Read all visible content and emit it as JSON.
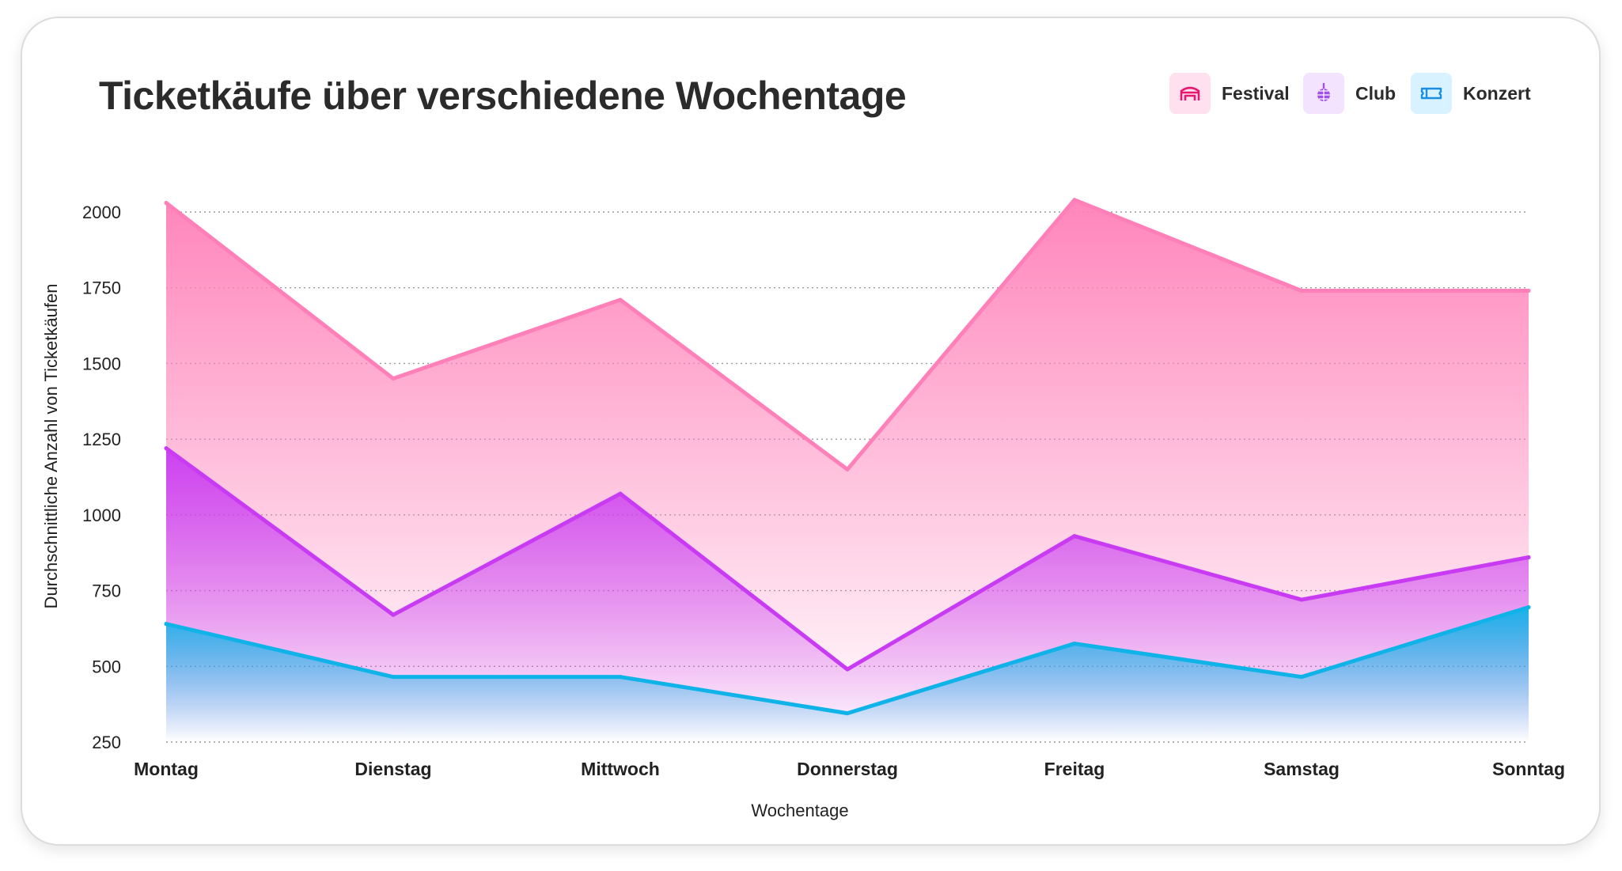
{
  "chart_data": {
    "type": "area",
    "title": "Ticketkäufe über verschiedene Wochentage",
    "xlabel": "Wochentage",
    "ylabel": "Durchschnittliche Anzahl von Ticketkäufen",
    "categories": [
      "Montag",
      "Dienstag",
      "Mittwoch",
      "Donnerstag",
      "Freitag",
      "Samstag",
      "Sonntag"
    ],
    "ylim": [
      250,
      2050
    ],
    "yticks": [
      250,
      500,
      750,
      1000,
      1250,
      1500,
      1750,
      2000
    ],
    "grid": true,
    "legend_position": "top-right",
    "series": [
      {
        "name": "Festival",
        "values": [
          2030,
          1450,
          1710,
          1150,
          2040,
          1740,
          1740
        ],
        "color": "#ff7fb8",
        "chip_color": "#ffe0ee",
        "icon_color": "#e8176f",
        "icon": "arena-icon"
      },
      {
        "name": "Club",
        "values": [
          1220,
          670,
          1070,
          490,
          930,
          720,
          860
        ],
        "color": "#c93bf2",
        "chip_color": "#f3e3ff",
        "icon_color": "#a34fe6",
        "icon": "disco-ball-icon"
      },
      {
        "name": "Konzert",
        "values": [
          640,
          465,
          465,
          345,
          575,
          465,
          695
        ],
        "color": "#10b3e8",
        "chip_color": "#d8f2ff",
        "icon_color": "#1a8fe0",
        "icon": "ticket-icon"
      }
    ]
  }
}
